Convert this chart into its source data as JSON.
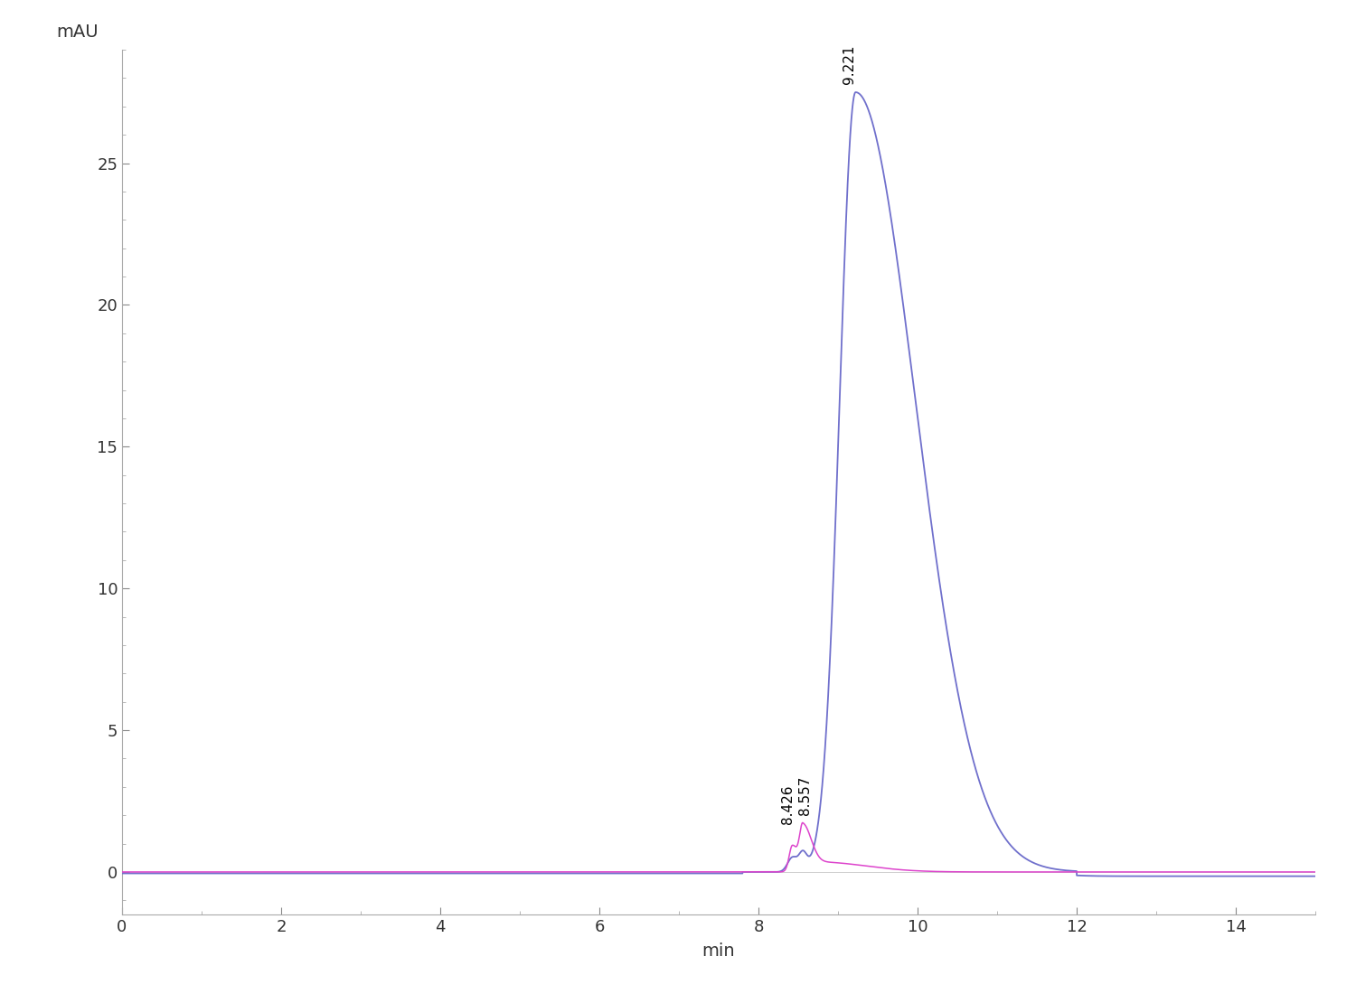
{
  "background_color": "#ffffff",
  "blue_color": "#7070cc",
  "pink_color": "#dd44cc",
  "peak1_time": 9.221,
  "peak1_height": 27.5,
  "peak2_time": 8.557,
  "peak2_height": 1.5,
  "peak3_time": 8.426,
  "peak3_height": 0.9,
  "xlim": [
    0,
    15
  ],
  "ylim": [
    -1.5,
    29
  ],
  "xlabel": "min",
  "ylabel": "mAU",
  "xticks": [
    0,
    2,
    4,
    6,
    8,
    10,
    12,
    14
  ],
  "yticks": [
    0,
    5,
    10,
    15,
    20,
    25
  ],
  "label1": "9.221",
  "label2": "8.426",
  "label3": "8.557",
  "label_fontsize": 11,
  "axis_fontsize": 14,
  "tick_fontsize": 13
}
